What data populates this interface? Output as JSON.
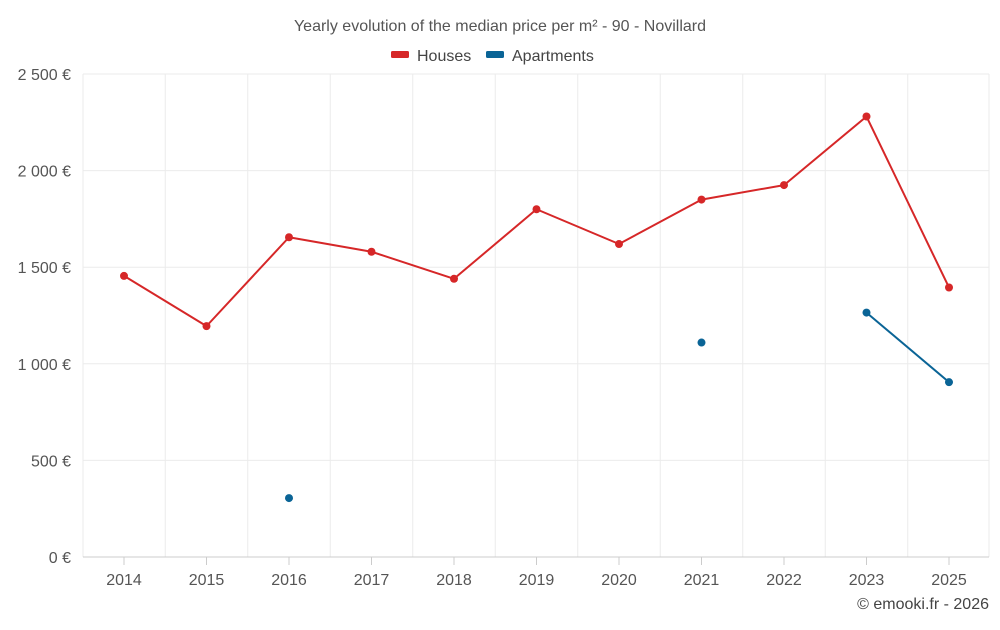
{
  "chart_data": {
    "type": "line",
    "title": "Yearly evolution of the median price per m² - 90 - Novillard",
    "categories": [
      "2014",
      "2015",
      "2016",
      "2017",
      "2018",
      "2019",
      "2020",
      "2021",
      "2022",
      "2023",
      "2025"
    ],
    "ylim": [
      0,
      2500
    ],
    "yticks": [
      0,
      500,
      1000,
      1500,
      2000,
      2500
    ],
    "ytick_labels": [
      "0 €",
      "500 €",
      "1 000 €",
      "1 500 €",
      "2 000 €",
      "2 500 €"
    ],
    "xlabel": "",
    "ylabel": "",
    "grid": true,
    "legend_position": "top-center",
    "series": [
      {
        "name": "Houses",
        "color": "#d62728",
        "values": [
          1455,
          1195,
          1655,
          1580,
          1440,
          1800,
          1620,
          1850,
          1925,
          2280,
          1395
        ]
      },
      {
        "name": "Apartments",
        "color": "#0a6496",
        "values": [
          null,
          null,
          305,
          null,
          null,
          null,
          null,
          1110,
          null,
          1265,
          905
        ]
      }
    ]
  },
  "credit": "© emooki.fr - 2026"
}
